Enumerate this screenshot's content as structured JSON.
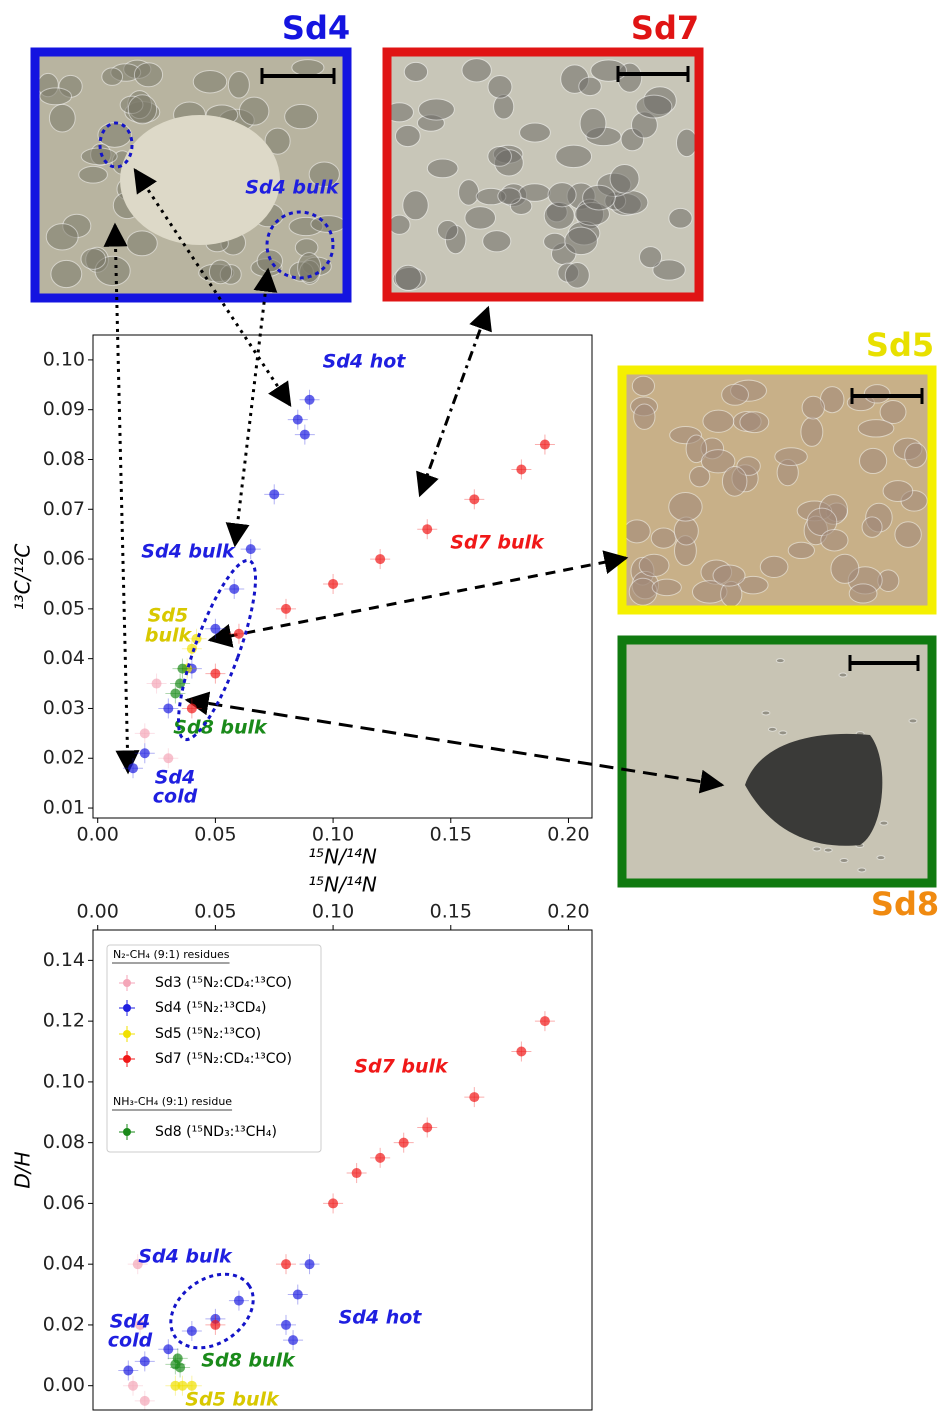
{
  "chart_data": [
    {
      "type": "scatter",
      "xlabel": "¹⁵N/¹⁴N",
      "ylabel": "¹³C/¹²C",
      "xlim": [
        -0.002,
        0.21
      ],
      "xticks": [
        {
          "value": 0,
          "label": "0.00"
        },
        0.05,
        {
          "value": 0.1,
          "label": "0.10"
        },
        0.15,
        {
          "value": 0.2,
          "label": "0.20"
        }
      ],
      "ylim": [
        0.008,
        0.105
      ],
      "yticks": [
        0.01,
        0.02,
        0.03,
        0.04,
        0.05,
        0.06,
        0.07,
        0.08,
        0.09,
        {
          "value": 0.1,
          "label": "0.10"
        }
      ],
      "series": [
        {
          "name": "Sd3",
          "color": "#f4a6b8",
          "x": [
            0.02,
            0.025,
            0.03
          ],
          "y": [
            0.025,
            0.035,
            0.02
          ]
        },
        {
          "name": "Sd4",
          "color": "#1f1fe0",
          "x": [
            0.015,
            0.02,
            0.03,
            0.04,
            0.05,
            0.058,
            0.065,
            0.075,
            0.085,
            0.09,
            0.088
          ],
          "y": [
            0.018,
            0.021,
            0.03,
            0.038,
            0.046,
            0.054,
            0.062,
            0.073,
            0.088,
            0.092,
            0.085
          ]
        },
        {
          "name": "Sd5",
          "color": "#f0e000",
          "x": [
            0.038,
            0.04,
            0.042
          ],
          "y": [
            0.038,
            0.042,
            0.044
          ]
        },
        {
          "name": "Sd7",
          "color": "#f01818",
          "x": [
            0.04,
            0.05,
            0.06,
            0.08,
            0.1,
            0.12,
            0.14,
            0.16,
            0.18,
            0.19
          ],
          "y": [
            0.03,
            0.037,
            0.045,
            0.05,
            0.055,
            0.06,
            0.066,
            0.072,
            0.078,
            0.083
          ]
        },
        {
          "name": "Sd8",
          "color": "#1a8a1a",
          "x": [
            0.033,
            0.035,
            0.036
          ],
          "y": [
            0.033,
            0.035,
            0.038
          ]
        }
      ],
      "annotations": [
        {
          "text": "Sd4 hot",
          "color": "#1f1fe0"
        },
        {
          "text": "Sd4 bulk",
          "color": "#1f1fe0"
        },
        {
          "text": "Sd7 bulk",
          "color": "#f01818"
        },
        {
          "text": "Sd5",
          "color": "#d8c800"
        },
        {
          "text": "bulk",
          "color": "#d8c800"
        },
        {
          "text": "Sd8 bulk",
          "color": "#1a8a1a"
        },
        {
          "text": "Sd4",
          "color": "#1f1fe0"
        },
        {
          "text": "cold",
          "color": "#1f1fe0"
        }
      ]
    },
    {
      "type": "scatter",
      "xlabel": "¹⁵N/¹⁴N",
      "ylabel": "D/H",
      "xlim": [
        -0.002,
        0.21
      ],
      "xticks": [
        {
          "value": 0,
          "label": "0.00"
        },
        0.05,
        {
          "value": 0.1,
          "label": "0.10"
        },
        0.15,
        {
          "value": 0.2,
          "label": "0.20"
        }
      ],
      "ylim": [
        -0.008,
        0.15
      ],
      "yticks": [
        {
          "value": 0,
          "label": "0.00"
        },
        0.02,
        0.04,
        0.06,
        0.08,
        {
          "value": 0.1,
          "label": "0.10"
        },
        0.12,
        0.14
      ],
      "legend_titles": [
        "N₂-CH₄ (9:1) residues",
        "NH₃-CH₄ (9:1) residue"
      ],
      "series": [
        {
          "name": "Sd3 (¹⁵N₂:CD₄:¹³CO)",
          "color": "#f4a6b8",
          "x": [
            0.015,
            0.018,
            0.02,
            0.017
          ],
          "y": [
            0,
            0.02,
            -0.005,
            0.04
          ]
        },
        {
          "name": "Sd4 (¹⁵N₂:¹³CD₄)",
          "color": "#1f1fe0",
          "x": [
            0.013,
            0.02,
            0.03,
            0.04,
            0.05,
            0.06,
            0.08,
            0.085,
            0.09,
            0.083
          ],
          "y": [
            0.005,
            0.008,
            0.012,
            0.018,
            0.022,
            0.028,
            0.02,
            0.03,
            0.04,
            0.015
          ]
        },
        {
          "name": "Sd5 (¹⁵N₂:¹³CO)",
          "color": "#f0e000",
          "x": [
            0.033,
            0.036,
            0.04
          ],
          "y": [
            0,
            0,
            0
          ]
        },
        {
          "name": "Sd7 (¹⁵N₂:CD₄:¹³CO)",
          "color": "#f01818",
          "x": [
            0.05,
            0.08,
            0.1,
            0.11,
            0.12,
            0.13,
            0.14,
            0.16,
            0.18,
            0.19
          ],
          "y": [
            0.02,
            0.04,
            0.06,
            0.07,
            0.075,
            0.08,
            0.085,
            0.095,
            0.11,
            0.12
          ]
        },
        {
          "name": "Sd8 (¹⁵ND₃:¹³CH₄)",
          "color": "#1a8a1a",
          "x": [
            0.033,
            0.034,
            0.035
          ],
          "y": [
            0.007,
            0.009,
            0.006
          ]
        }
      ],
      "annotations": [
        {
          "text": "Sd7 bulk",
          "color": "#f01818"
        },
        {
          "text": "Sd4 bulk",
          "color": "#1f1fe0"
        },
        {
          "text": "Sd4 hot",
          "color": "#1f1fe0"
        },
        {
          "text": "Sd4",
          "color": "#1f1fe0"
        },
        {
          "text": "cold",
          "color": "#1f1fe0"
        },
        {
          "text": "Sd8 bulk",
          "color": "#1a8a1a"
        },
        {
          "text": "Sd5 bulk",
          "color": "#d8c800"
        }
      ]
    }
  ],
  "panels": [
    {
      "label": "Sd4",
      "color": "#1414e0",
      "annotation": "Sd4 bulk"
    },
    {
      "label": "Sd7",
      "color": "#e01414"
    },
    {
      "label": "Sd5",
      "color": "#e8e000"
    },
    {
      "label": "Sd8",
      "color": "#f08a10"
    }
  ]
}
